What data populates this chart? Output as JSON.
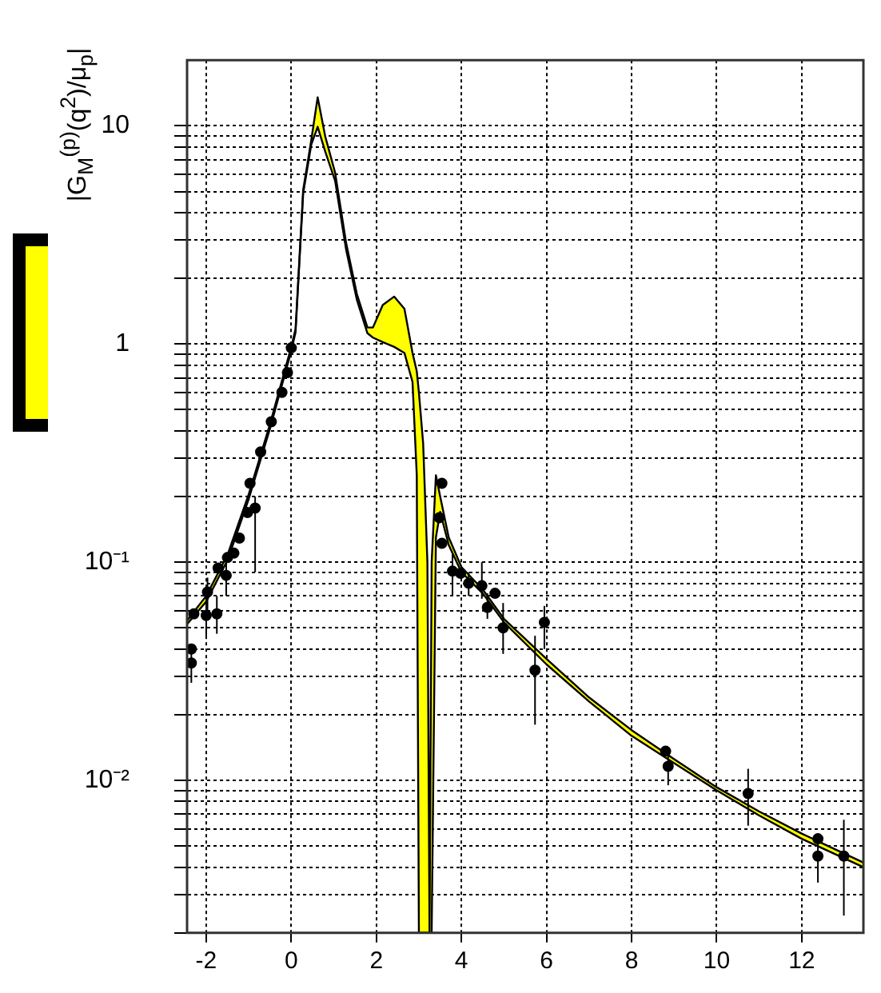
{
  "chart_data": {
    "type": "line",
    "ylabel": "|G$_{M}$$^{(p)}$(q$^{2}$)/μ$_{p}$|",
    "log": "y",
    "grid": true,
    "line_style": "solid",
    "xlim": [
      -2.45,
      13.45
    ],
    "xticks": [
      -2,
      0,
      2,
      4,
      6,
      8,
      10,
      12
    ],
    "ylim": [
      0.002,
      20
    ],
    "yticks": [
      {
        "value": 0.002,
        "label": null
      },
      {
        "value": 0.003,
        "label": null
      },
      {
        "value": 0.004,
        "label": null
      },
      {
        "value": 0.005,
        "label": null
      },
      {
        "value": 0.006,
        "label": null
      },
      {
        "value": 0.007,
        "label": null
      },
      {
        "value": 0.008,
        "label": null
      },
      {
        "value": 0.009,
        "label": null
      },
      {
        "value": 0.01,
        "label": "10⁻²"
      },
      {
        "value": 0.02,
        "label": null
      },
      {
        "value": 0.03,
        "label": null
      },
      {
        "value": 0.04,
        "label": null
      },
      {
        "value": 0.05,
        "label": null
      },
      {
        "value": 0.06,
        "label": null
      },
      {
        "value": 0.07,
        "label": null
      },
      {
        "value": 0.08,
        "label": null
      },
      {
        "value": 0.09,
        "label": null
      },
      {
        "value": 0.1,
        "label": "10⁻¹"
      },
      {
        "value": 0.2,
        "label": null
      },
      {
        "value": 0.3,
        "label": null
      },
      {
        "value": 0.4,
        "label": null
      },
      {
        "value": 0.5,
        "label": null
      },
      {
        "value": 0.6,
        "label": null
      },
      {
        "value": 0.7,
        "label": null
      },
      {
        "value": 0.8,
        "label": null
      },
      {
        "value": 0.9,
        "label": null
      },
      1,
      {
        "value": 2,
        "label": null
      },
      {
        "value": 3,
        "label": null
      },
      {
        "value": 4,
        "label": null
      },
      {
        "value": 5,
        "label": null
      },
      {
        "value": 6,
        "label": null
      },
      {
        "value": 7,
        "label": null
      },
      {
        "value": 8,
        "label": null
      },
      {
        "value": 9,
        "label": null
      },
      10
    ],
    "series": [
      {
        "color": "#000000",
        "x": [
          -2.45,
          -2,
          -1.5,
          -1,
          -0.5,
          0,
          0.1,
          0.28,
          0.47,
          0.62,
          0.8,
          1.03,
          1.29,
          1.54,
          1.79,
          1.92,
          2.15,
          2.42,
          2.66,
          2.85,
          2.95,
          3.0,
          3.1,
          3.2,
          3.25,
          3.3,
          3.4,
          3.5,
          3.7,
          4,
          4.5,
          5,
          6,
          7,
          8,
          9,
          10,
          11,
          12,
          13.45
        ],
        "values": [
          0.054,
          0.07,
          0.108,
          0.205,
          0.43,
          0.97,
          1.17,
          5.1,
          8.6,
          13.5,
          8.9,
          6.1,
          2.9,
          1.7,
          1.19,
          1.19,
          1.51,
          1.65,
          1.45,
          0.91,
          0.75,
          0.6,
          0.35,
          0.1,
          0.002,
          0.1,
          0.25,
          0.2,
          0.13,
          0.095,
          0.075,
          0.055,
          0.036,
          0.024,
          0.017,
          0.0125,
          0.0093,
          0.0072,
          0.0057,
          0.0042
        ],
        "upper": [
          0.054,
          0.07,
          0.108,
          0.205,
          0.43,
          0.97,
          1.17,
          5.1,
          8.6,
          13.5,
          8.9,
          6.1,
          2.9,
          1.7,
          1.19,
          1.19,
          1.51,
          1.65,
          1.45,
          0.91,
          0.75,
          0.6,
          0.35,
          0.1,
          0.002,
          0.1,
          0.25,
          0.2,
          0.13,
          0.095,
          0.075,
          0.055,
          0.036,
          0.024,
          0.017,
          0.0125,
          0.0093,
          0.0072,
          0.0057,
          0.0042
        ],
        "lower": [
          0.052,
          0.066,
          0.102,
          0.195,
          0.41,
          0.93,
          1.13,
          4.9,
          8.2,
          9.9,
          7.6,
          5.6,
          2.7,
          1.6,
          1.12,
          1.07,
          1.02,
          0.97,
          0.91,
          0.67,
          0.25,
          0.002,
          0.002,
          0.002,
          0.002,
          0.002,
          0.13,
          0.17,
          0.12,
          0.09,
          0.072,
          0.053,
          0.034,
          0.023,
          0.016,
          0.012,
          0.009,
          0.0069,
          0.0054,
          0.004
        ]
      },
      {
        "color": "#000000",
        "x": [
          -2.45,
          -2,
          -1.5,
          -1,
          -0.5,
          0,
          0.1,
          0.28,
          0.47,
          0.62,
          0.8,
          1.03,
          1.29,
          1.54,
          1.79,
          1.92,
          2.15,
          2.42,
          2.66,
          2.85,
          2.95,
          3.0,
          3.1,
          3.2,
          3.25,
          3.3,
          3.4,
          3.5,
          3.7,
          4,
          4.5,
          5,
          6,
          7,
          8,
          9,
          10,
          11,
          12,
          13.45
        ],
        "values": [
          0.052,
          0.066,
          0.102,
          0.195,
          0.41,
          0.93,
          1.13,
          4.9,
          8.2,
          9.9,
          7.6,
          5.6,
          2.7,
          1.6,
          1.12,
          1.07,
          1.02,
          0.97,
          0.91,
          0.67,
          0.25,
          0.002,
          0.002,
          0.002,
          0.002,
          0.002,
          0.13,
          0.17,
          0.12,
          0.09,
          0.072,
          0.053,
          0.034,
          0.023,
          0.016,
          0.012,
          0.009,
          0.0069,
          0.0054,
          0.004
        ]
      },
      {
        "type": "scatter",
        "color": "#000000",
        "marker": "circle",
        "x": [
          -2.35,
          -2.35,
          -2.29,
          -2.0,
          -1.97,
          -1.75,
          -1.72,
          -1.53,
          -1.5,
          -1.35,
          -1.22,
          -1.03,
          -0.85,
          -0.97,
          -0.72,
          -0.47,
          -0.22,
          -0.09,
          0.0,
          3.54,
          3.48,
          3.54,
          3.79,
          3.98,
          4.17,
          4.48,
          4.61,
          4.79,
          4.98,
          5.73,
          5.95,
          8.8,
          8.86,
          10.74,
          12.38,
          12.38,
          12.99
        ],
        "values": [
          0.0345,
          0.04,
          0.058,
          0.057,
          0.073,
          0.058,
          0.094,
          0.087,
          0.105,
          0.11,
          0.129,
          0.169,
          0.177,
          0.23,
          0.32,
          0.44,
          0.6,
          0.74,
          0.96,
          0.23,
          0.16,
          0.122,
          0.091,
          0.089,
          0.08,
          0.078,
          0.062,
          0.072,
          0.05,
          0.032,
          0.053,
          0.0136,
          0.0116,
          0.0087,
          0.0054,
          0.0045,
          0.0045
        ],
        "errors": [
          [
            0.028,
            0.04
          ],
          null,
          null,
          [
            0.045,
            0.07
          ],
          [
            0.06,
            0.085
          ],
          [
            0.047,
            0.07
          ],
          null,
          [
            0.07,
            0.1
          ],
          null,
          null,
          null,
          null,
          [
            0.09,
            0.2
          ],
          null,
          null,
          null,
          null,
          null,
          null,
          null,
          null,
          null,
          [
            0.07,
            0.11
          ],
          null,
          [
            0.07,
            0.09
          ],
          [
            0.068,
            0.1
          ],
          [
            0.055,
            0.072
          ],
          null,
          [
            0.038,
            0.065
          ],
          [
            0.018,
            0.046
          ],
          [
            0.04,
            0.063
          ],
          null,
          [
            0.0095,
            0.0135
          ],
          [
            0.0062,
            0.0113
          ],
          null,
          [
            0.0034,
            0.0054
          ],
          [
            0.0024,
            0.0066
          ]
        ]
      }
    ]
  }
}
